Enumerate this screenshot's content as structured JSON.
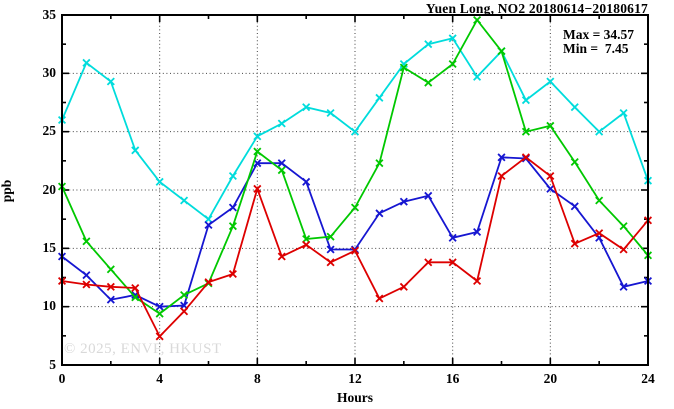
{
  "title": "Yuen Long, NO2 20180614−20180617",
  "annotations": {
    "max_label": "Max = 34.57",
    "min_label": "Min =  7.45"
  },
  "watermark": "© 2025, ENVF, HKUST",
  "chart_data": {
    "type": "line",
    "title": "Yuen Long, NO2 20180614−20180617",
    "xlabel": "Hours",
    "ylabel": "ppb",
    "xlim": [
      0,
      24
    ],
    "ylim": [
      5,
      35
    ],
    "x_major_ticks": [
      0,
      4,
      8,
      12,
      16,
      20,
      24
    ],
    "x_minor_ticks": [
      2,
      6,
      10,
      14,
      18,
      22
    ],
    "y_major_ticks": [
      5,
      10,
      15,
      20,
      25,
      30,
      35
    ],
    "y_minor_ticks": [
      7.5,
      12.5,
      17.5,
      22.5,
      27.5,
      32.5
    ],
    "x_gridlines": [
      4,
      8,
      12,
      16,
      20
    ],
    "y_gridlines": [
      10,
      15,
      20,
      25,
      30
    ],
    "grid_style": "dotted",
    "legend_position": "none",
    "marker": "x",
    "stat_max": 34.57,
    "stat_min": 7.45,
    "x": [
      0,
      1,
      2,
      3,
      4,
      5,
      6,
      7,
      8,
      9,
      10,
      11,
      12,
      13,
      14,
      15,
      16,
      17,
      18,
      19,
      20,
      21,
      22,
      23,
      24
    ],
    "series": [
      {
        "name": "cyan-line",
        "color": "#00dcdc",
        "values": [
          26.0,
          30.9,
          29.3,
          23.4,
          20.7,
          19.1,
          17.5,
          21.2,
          24.6,
          25.7,
          27.1,
          26.6,
          25.0,
          27.9,
          30.8,
          32.5,
          33.0,
          29.7,
          31.9,
          27.7,
          29.3,
          27.1,
          25.0,
          26.6,
          20.8
        ]
      },
      {
        "name": "blue-line",
        "color": "#1616d1",
        "values": [
          14.3,
          12.7,
          10.6,
          11.0,
          10.0,
          10.1,
          17.0,
          18.5,
          22.3,
          22.3,
          20.7,
          14.9,
          14.9,
          18.0,
          19.0,
          19.5,
          15.9,
          16.4,
          22.8,
          22.7,
          20.1,
          18.6,
          15.9,
          11.7,
          12.2
        ]
      },
      {
        "name": "green-line",
        "color": "#00c800",
        "values": [
          20.3,
          15.6,
          13.2,
          10.8,
          9.4,
          11.0,
          12.0,
          16.9,
          23.3,
          21.7,
          15.8,
          16.0,
          18.5,
          22.3,
          30.5,
          29.2,
          30.8,
          34.57,
          31.9,
          25.0,
          25.5,
          22.4,
          19.1,
          16.9,
          14.4
        ]
      },
      {
        "name": "red-line",
        "color": "#dd0000",
        "values": [
          12.2,
          11.9,
          11.7,
          11.6,
          7.45,
          9.6,
          12.1,
          12.8,
          20.1,
          14.3,
          15.3,
          13.8,
          14.8,
          10.7,
          11.7,
          13.8,
          13.8,
          12.2,
          21.2,
          22.8,
          21.2,
          15.4,
          16.3,
          14.9,
          17.4
        ]
      }
    ]
  }
}
